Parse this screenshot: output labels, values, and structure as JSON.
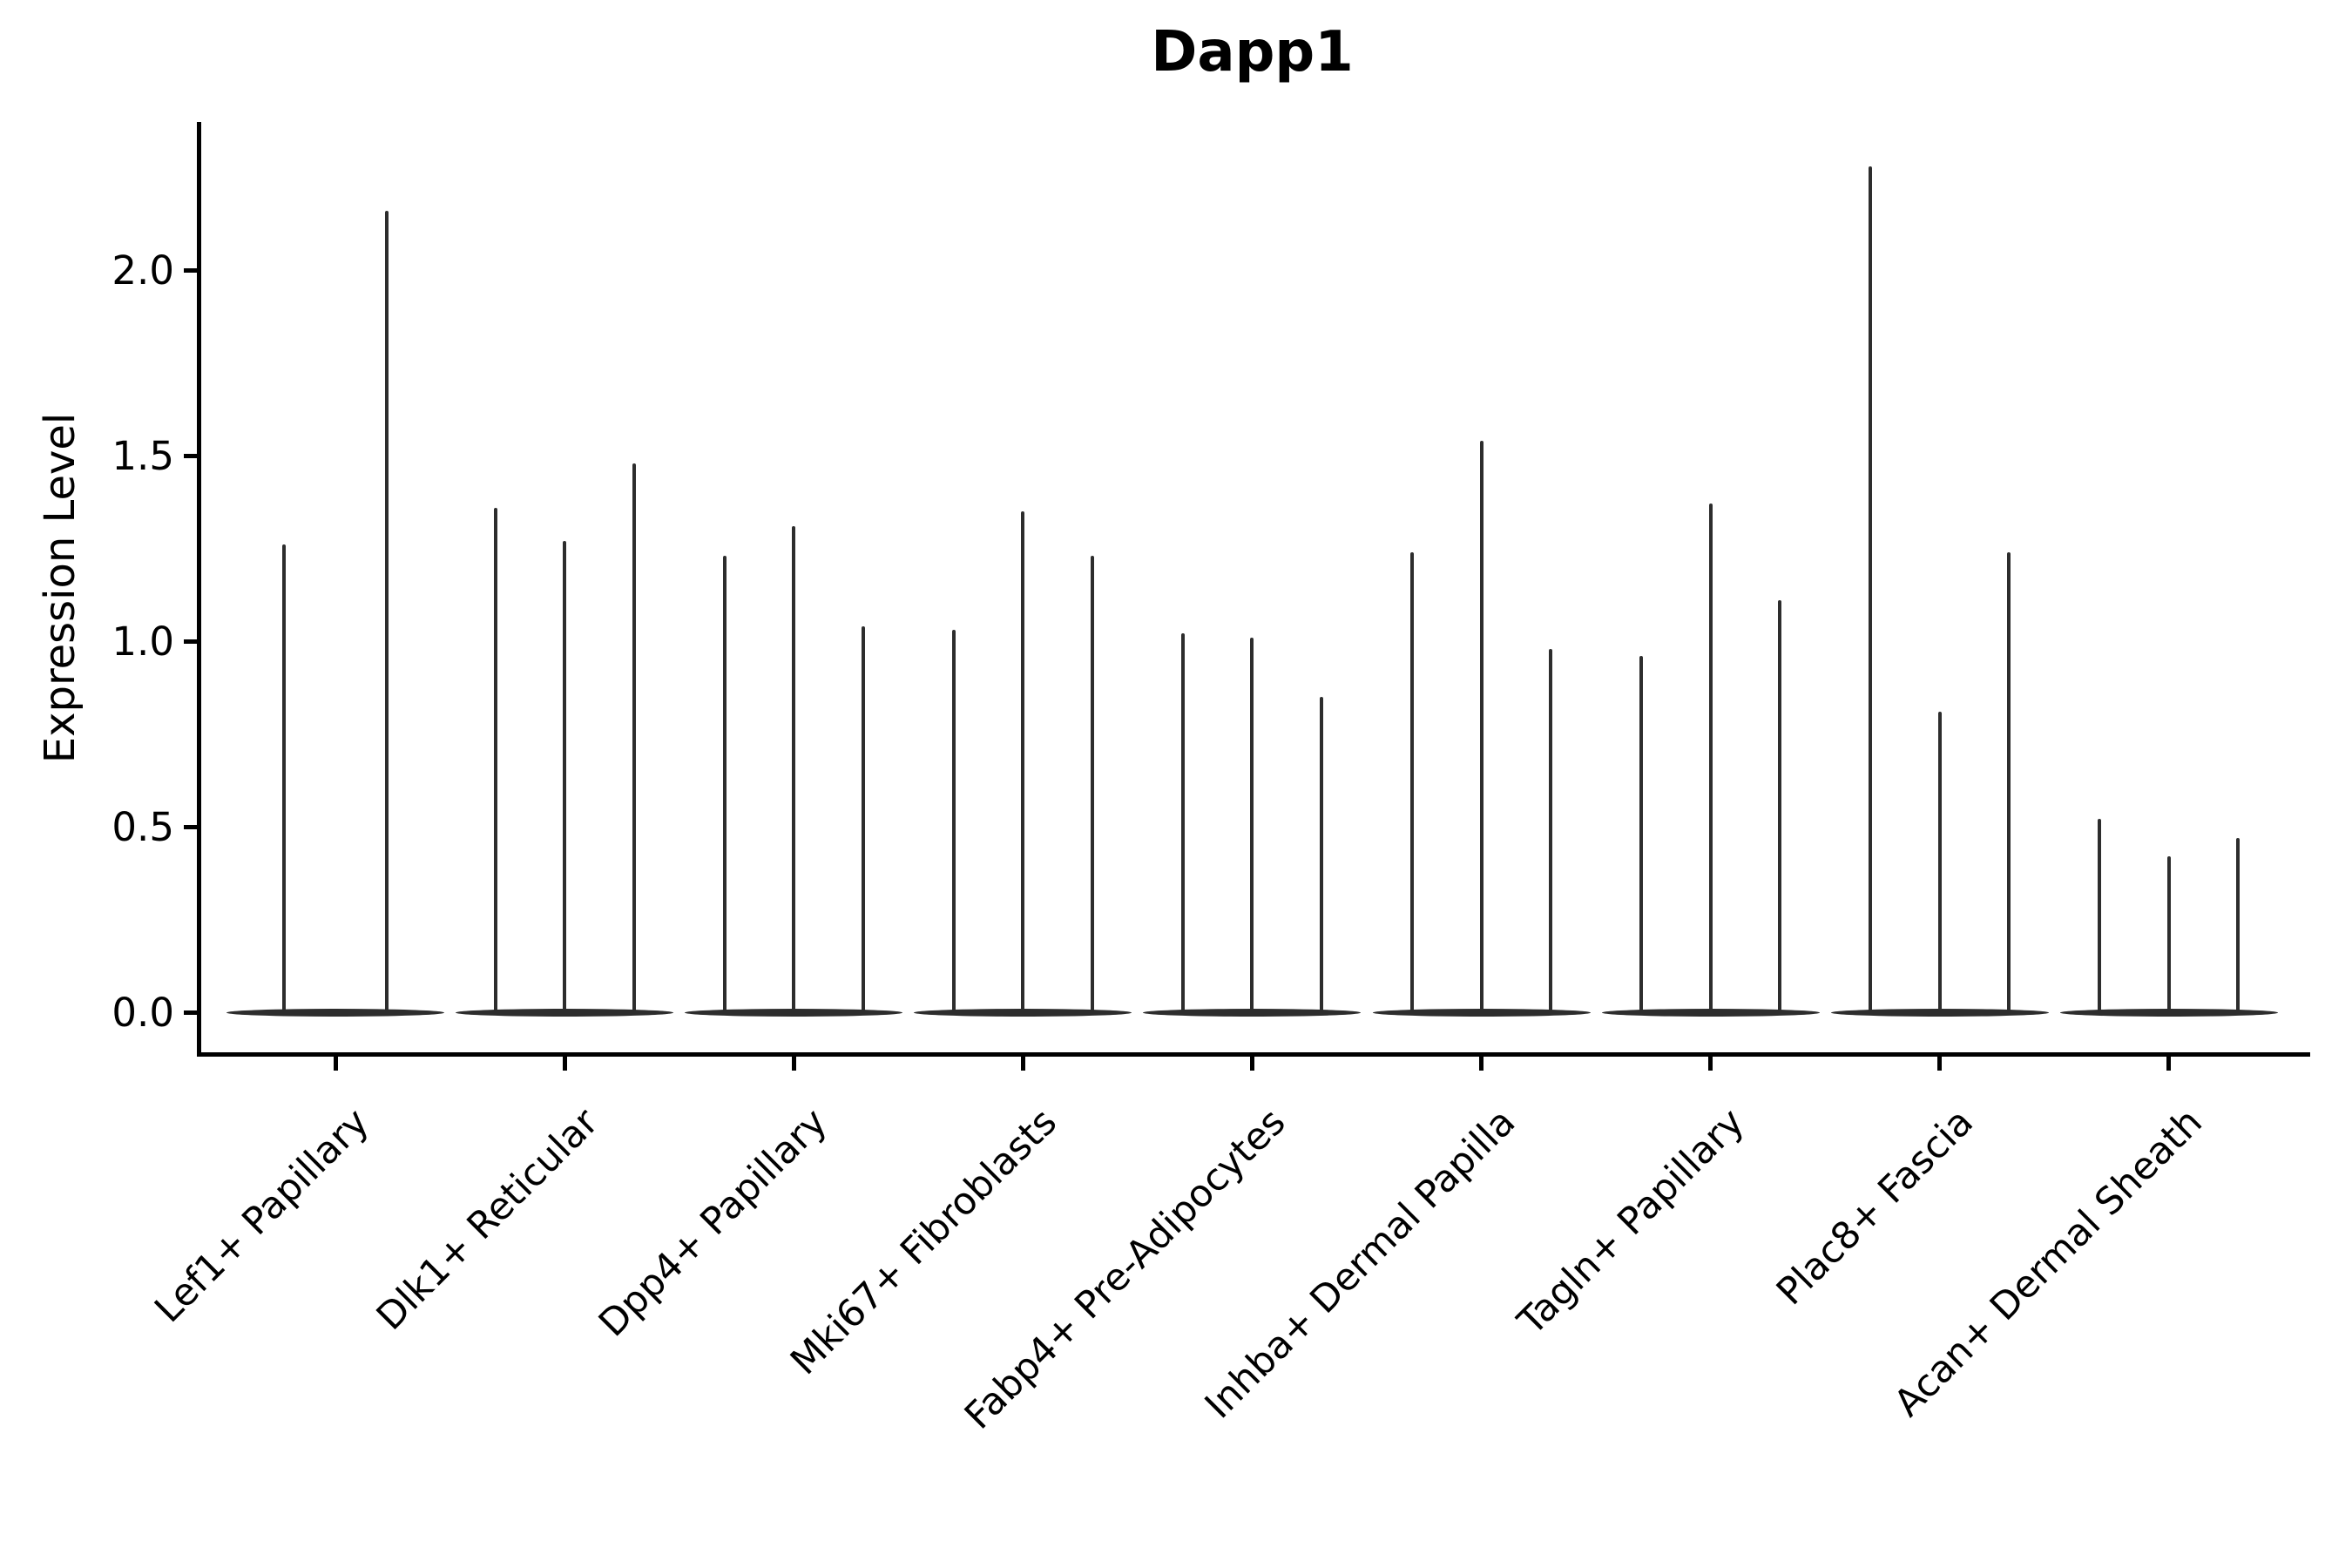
{
  "chart_data": {
    "type": "violin",
    "title": "Dapp1",
    "ylabel": "Expression Level",
    "xlabel": "",
    "grid": false,
    "legend": "none",
    "ylim": [
      -0.11,
      2.4
    ],
    "ytick_labels": [
      "0.0",
      "0.5",
      "1.0",
      "1.5",
      "2.0"
    ],
    "ytick_values": [
      0.0,
      0.5,
      1.0,
      1.5,
      2.0
    ],
    "categories": [
      "Lef1+ Papillary",
      "Dlk1+ Reticular",
      "Dpp4+ Papillary",
      "Mki67+ Fibroblasts",
      "Fabp4+ Pre-Adipocytes",
      "Inhba+ Dermal Papilla",
      "Tagln+ Papillary",
      "Plac8+ Fascia",
      "Acan+ Dermal Sheath"
    ],
    "series": [
      {
        "category": "Lef1+ Papillary",
        "violin_peak_values": [
          1.26,
          2.16
        ]
      },
      {
        "category": "Dlk1+ Reticular",
        "violin_peak_values": [
          1.36,
          1.27,
          1.48
        ]
      },
      {
        "category": "Dpp4+ Papillary",
        "violin_peak_values": [
          1.23,
          1.31,
          1.04
        ]
      },
      {
        "category": "Mki67+ Fibroblasts",
        "violin_peak_values": [
          1.03,
          1.35,
          1.23
        ]
      },
      {
        "category": "Fabp4+ Pre-Adipocytes",
        "violin_peak_values": [
          1.02,
          1.01,
          0.85
        ]
      },
      {
        "category": "Inhba+ Dermal Papilla",
        "violin_peak_values": [
          1.24,
          1.54,
          0.98
        ]
      },
      {
        "category": "Tagln+ Papillary",
        "violin_peak_values": [
          0.96,
          1.37,
          1.11
        ]
      },
      {
        "category": "Plac8+ Fascia",
        "violin_peak_values": [
          2.28,
          0.81,
          1.24
        ]
      },
      {
        "category": "Acan+ Dermal Sheath",
        "violin_peak_values": [
          0.52,
          0.42,
          0.47
        ]
      }
    ],
    "description": "Violin plot of Dapp1 expression; violins are extremely narrow spikes with mass concentrated at 0",
    "colors": {
      "violin": "#2d2d2d",
      "axis": "#000000",
      "text": "#000000",
      "background": "#ffffff"
    }
  }
}
